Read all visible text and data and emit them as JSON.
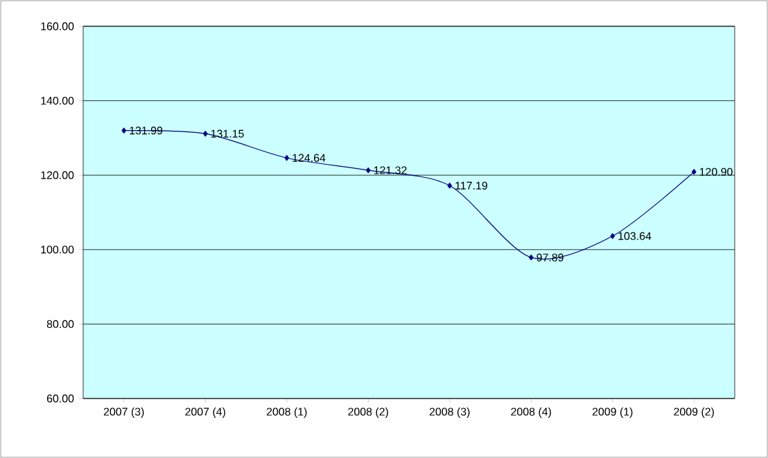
{
  "chart_data": {
    "type": "line",
    "categories": [
      "2007 (3)",
      "2007 (4)",
      "2008 (1)",
      "2008 (2)",
      "2008 (3)",
      "2008 (4)",
      "2009 (1)",
      "2009 (2)"
    ],
    "series": [
      {
        "color": "#000080",
        "values": [
          131.99,
          131.15,
          124.64,
          121.32,
          117.19,
          97.89,
          103.64,
          120.9
        ],
        "value_labels": [
          "131.99",
          "131.15",
          "124.64",
          "121.32",
          "117.19",
          "97.89",
          "103.64",
          "120.90"
        ]
      }
    ],
    "ylim": [
      60,
      160
    ],
    "yticks": [
      {
        "value": 60,
        "label": "60.00"
      },
      {
        "value": 80,
        "label": "80.00"
      },
      {
        "value": 100,
        "label": "100.00"
      },
      {
        "value": 120,
        "label": "120.00"
      },
      {
        "value": 140,
        "label": "140.00"
      },
      {
        "value": 160,
        "label": "160.00"
      }
    ],
    "grid": "y",
    "marker": "diamond",
    "line_style": "solid"
  }
}
